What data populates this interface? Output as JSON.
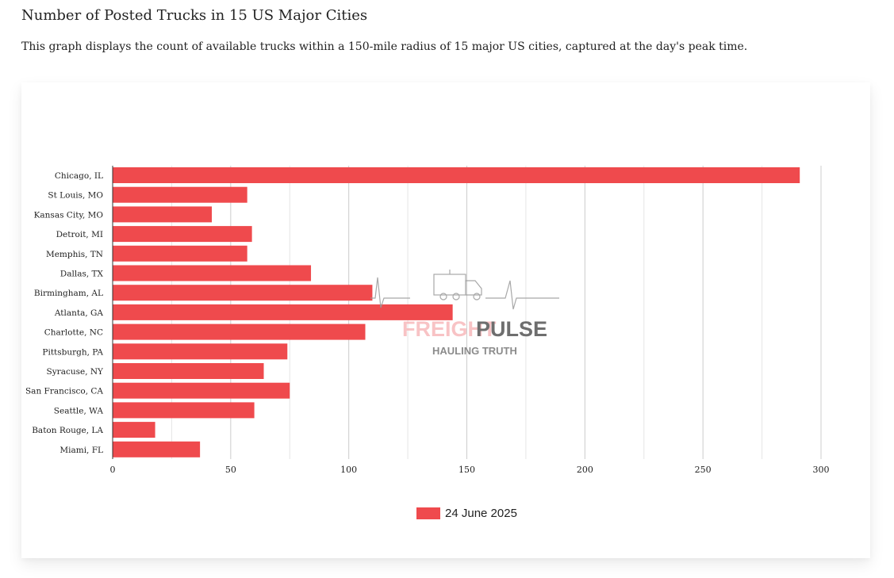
{
  "page": {
    "title": "Number of Posted Trucks in 15 US Major Cities",
    "description": "This graph displays the count of available trucks within a 150-mile radius of 15 major US cities, captured at the day's peak time."
  },
  "watermark": {
    "brand_part1": "FREIGHT",
    "brand_part2": "PULSE",
    "tagline": "HAULING TRUTH"
  },
  "chart_data": {
    "type": "bar",
    "orientation": "horizontal",
    "title": "",
    "xlabel": "",
    "ylabel": "",
    "categories": [
      "Chicago, IL",
      "St Louis, MO",
      "Kansas City, MO",
      "Detroit, MI",
      "Memphis, TN",
      "Dallas, TX",
      "Birmingham, AL",
      "Atlanta, GA",
      "Charlotte, NC",
      "Pittsburgh, PA",
      "Syracuse, NY",
      "San Francisco, CA",
      "Seattle, WA",
      "Baton Rouge, LA",
      "Miami, FL"
    ],
    "series": [
      {
        "name": "24 June 2025",
        "color": "#ef4a4d",
        "values": [
          291,
          57,
          42,
          59,
          57,
          84,
          110,
          144,
          107,
          74,
          64,
          75,
          60,
          18,
          37
        ]
      }
    ],
    "xlim": [
      0,
      300
    ],
    "xticks": [
      0,
      50,
      100,
      150,
      200,
      250,
      300
    ],
    "grid": true,
    "legend_position": "bottom"
  }
}
